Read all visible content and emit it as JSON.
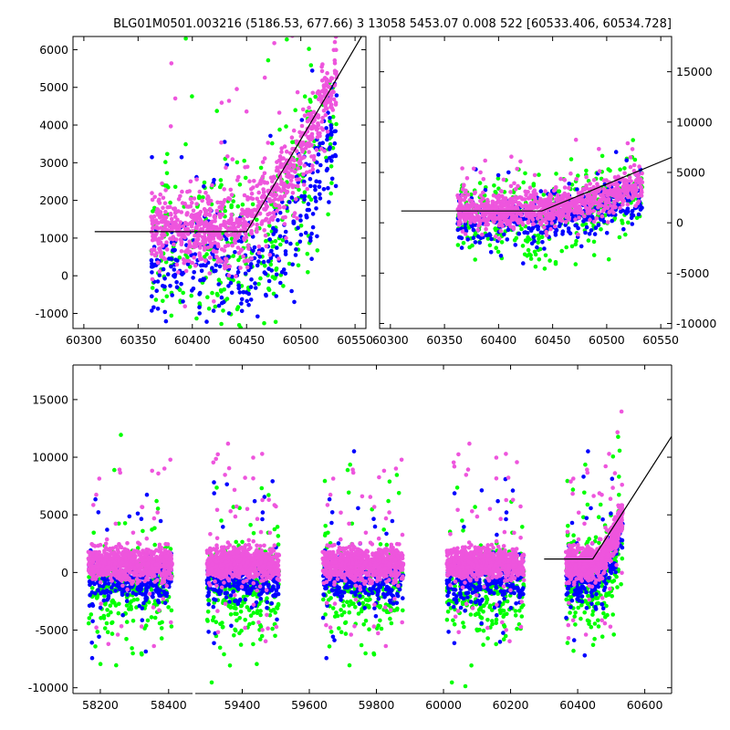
{
  "title": "BLG01M0501.003216 (5186.53, 677.66)   3 13058 5453.07 0.008 522 [60533.406, 60534.728]",
  "colors": {
    "blue": "#0000ff",
    "green": "#00ff00",
    "magenta": "#ee55dd",
    "line": "#000000"
  },
  "chart_data": [
    {
      "type": "scatter",
      "panel": "top-left",
      "xlim": [
        60290,
        60560
      ],
      "ylim": [
        -1400,
        6350
      ],
      "x_ticks": [
        "60300",
        "60350",
        "60400",
        "60450",
        "60500",
        "60550"
      ],
      "y_ticks": [
        "-1000",
        "0",
        "1000",
        "2000",
        "3000",
        "4000",
        "5000",
        "6000"
      ],
      "y_axis_side": "left",
      "model_line": {
        "x": [
          60310,
          60450,
          60556
        ],
        "y": [
          1170,
          1170,
          6350
        ]
      },
      "series": [
        {
          "color": "magenta",
          "baseline": 1200,
          "rise_start": 60440,
          "rise_end": 60533,
          "rise_top": 5200,
          "scatter": 500
        },
        {
          "color": "blue",
          "baseline": 250,
          "rise_start": 60460,
          "rise_end": 60533,
          "rise_top": 3900,
          "scatter": 700
        },
        {
          "color": "green",
          "baseline": 600,
          "rise_start": 60450,
          "rise_end": 60533,
          "rise_top": 4300,
          "scatter": 1200
        }
      ]
    },
    {
      "type": "scatter",
      "panel": "top-right",
      "xlim": [
        60290,
        60560
      ],
      "ylim": [
        -10500,
        18500
      ],
      "x_ticks": [
        "60300",
        "60350",
        "60400",
        "60450",
        "60500",
        "60550"
      ],
      "y_ticks": [
        "-10000",
        "-5000",
        "0",
        "5000",
        "10000",
        "15000"
      ],
      "y_axis_side": "right",
      "model_line": {
        "x": [
          60310,
          60440,
          60560
        ],
        "y": [
          1170,
          1170,
          6500
        ]
      }
    },
    {
      "type": "scatter",
      "panel": "bottom",
      "ylim": [
        -10500,
        18000
      ],
      "y_ticks": [
        "-10000",
        "-5000",
        "0",
        "5000",
        "10000",
        "15000"
      ],
      "segments": [
        {
          "xlim": [
            58120,
            58470
          ],
          "x_ticks": [
            "58200",
            "58400"
          ],
          "seasons": [
            [
              58165,
              58410
            ]
          ]
        },
        {
          "xlim": [
            59260,
            60680
          ],
          "x_ticks": [
            "59400",
            "59600",
            "59800",
            "60000",
            "60200",
            "60400",
            "60600"
          ],
          "seasons": [
            [
              59295,
              59510
            ],
            [
              59640,
              59880
            ],
            [
              60010,
              60240
            ],
            [
              60365,
              60534
            ]
          ]
        }
      ],
      "model_line": {
        "x": [
          60300,
          60445,
          60680
        ],
        "y": [
          1170,
          1170,
          11800
        ]
      }
    }
  ]
}
